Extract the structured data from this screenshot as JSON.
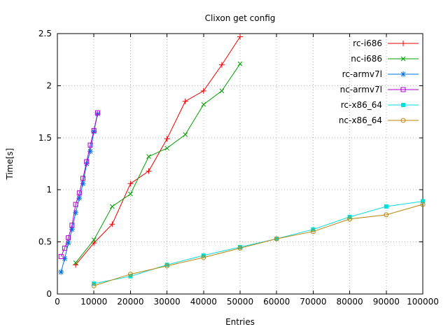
{
  "chart_data": {
    "type": "line",
    "title": "Clixon get config",
    "xlabel": "Entries",
    "ylabel": "Time[s]",
    "xlim": [
      0,
      100000
    ],
    "ylim": [
      0,
      2.5
    ],
    "xticks": [
      0,
      10000,
      20000,
      30000,
      40000,
      50000,
      60000,
      70000,
      80000,
      90000,
      100000
    ],
    "yticks": [
      0,
      0.5,
      1,
      1.5,
      2,
      2.5
    ],
    "grid": true,
    "legend_position": "top-right-inside",
    "border_color": "#000000",
    "grid_color": "#b0b0b0",
    "series": [
      {
        "name": "rc-i686",
        "color": "#e60000",
        "marker": "plus",
        "points": [
          [
            5000,
            0.28
          ],
          [
            10000,
            0.49
          ],
          [
            15000,
            0.67
          ],
          [
            20000,
            1.06
          ],
          [
            25000,
            1.18
          ],
          [
            30000,
            1.49
          ],
          [
            35000,
            1.85
          ],
          [
            40000,
            1.95
          ],
          [
            45000,
            2.2
          ],
          [
            50000,
            2.47
          ]
        ]
      },
      {
        "name": "nc-i686",
        "color": "#00a000",
        "marker": "cross",
        "points": [
          [
            5000,
            0.3
          ],
          [
            10000,
            0.52
          ],
          [
            15000,
            0.84
          ],
          [
            20000,
            0.96
          ],
          [
            25000,
            1.32
          ],
          [
            30000,
            1.4
          ],
          [
            35000,
            1.53
          ],
          [
            40000,
            1.82
          ],
          [
            45000,
            1.95
          ],
          [
            50000,
            2.21
          ]
        ]
      },
      {
        "name": "rc-armv7l",
        "color": "#0070e0",
        "marker": "asterisk",
        "points": [
          [
            1000,
            0.21
          ],
          [
            2000,
            0.34
          ],
          [
            3000,
            0.49
          ],
          [
            4000,
            0.62
          ],
          [
            5000,
            0.78
          ],
          [
            6000,
            0.92
          ],
          [
            7000,
            1.06
          ],
          [
            8000,
            1.25
          ],
          [
            9000,
            1.37
          ],
          [
            10000,
            1.56
          ],
          [
            11000,
            1.73
          ]
        ]
      },
      {
        "name": "nc-armv7l",
        "color": "#aa00cc",
        "marker": "square-open",
        "points": [
          [
            1000,
            0.36
          ],
          [
            2000,
            0.44
          ],
          [
            3000,
            0.54
          ],
          [
            4000,
            0.66
          ],
          [
            5000,
            0.86
          ],
          [
            6000,
            0.97
          ],
          [
            7000,
            1.11
          ],
          [
            8000,
            1.27
          ],
          [
            9000,
            1.43
          ],
          [
            10000,
            1.57
          ],
          [
            11000,
            1.74
          ]
        ]
      },
      {
        "name": "rc-x86_64",
        "color": "#00dede",
        "marker": "square-filled",
        "points": [
          [
            10000,
            0.1
          ],
          [
            20000,
            0.17
          ],
          [
            30000,
            0.28
          ],
          [
            40000,
            0.37
          ],
          [
            50000,
            0.45
          ],
          [
            60000,
            0.53
          ],
          [
            70000,
            0.62
          ],
          [
            80000,
            0.74
          ],
          [
            90000,
            0.84
          ],
          [
            100000,
            0.89
          ]
        ]
      },
      {
        "name": "nc-x86_64",
        "color": "#b8860b",
        "marker": "circle-open",
        "points": [
          [
            10000,
            0.08
          ],
          [
            20000,
            0.19
          ],
          [
            30000,
            0.27
          ],
          [
            40000,
            0.35
          ],
          [
            50000,
            0.44
          ],
          [
            60000,
            0.53
          ],
          [
            70000,
            0.6
          ],
          [
            80000,
            0.72
          ],
          [
            90000,
            0.76
          ],
          [
            100000,
            0.86
          ]
        ]
      }
    ]
  }
}
